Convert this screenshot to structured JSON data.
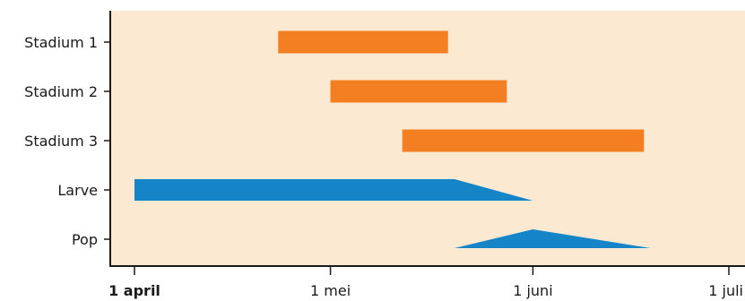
{
  "chart_data": {
    "type": "gantt",
    "title": "",
    "xlabel": "",
    "ylabel": "",
    "x_axis": {
      "type": "date",
      "range": [
        "1 april",
        "1 juli"
      ],
      "ticks": [
        {
          "label": "1 april",
          "bold": true
        },
        {
          "label": "1 mei",
          "bold": false
        },
        {
          "label": "1 juni",
          "bold": false
        },
        {
          "label": "1 juli",
          "bold": false
        }
      ]
    },
    "grid": false,
    "plot_background": "#fbe9d2",
    "categories": [
      "Stadium 1",
      "Stadium 2",
      "Stadium 3",
      "Larve",
      "Pop"
    ],
    "bars": [
      {
        "category": "Stadium 1",
        "start": "23 april",
        "end": "19 mei",
        "color": "#f47e22"
      },
      {
        "category": "Stadium 2",
        "start": "1 mei",
        "end": "28 mei",
        "color": "#f47e22"
      },
      {
        "category": "Stadium 3",
        "start": "12 mei",
        "end": "18 juni",
        "color": "#f47e22"
      }
    ],
    "ranges": [
      {
        "category": "Larve",
        "shape": "ramp-down",
        "start": "1 april",
        "full_until": "20 mei",
        "end": "1 juni",
        "color": "#1585c7"
      },
      {
        "category": "Pop",
        "shape": "peak",
        "start": "20 mei",
        "peak": "1 juni",
        "end": "19 juni",
        "color": "#1585c7"
      }
    ]
  }
}
